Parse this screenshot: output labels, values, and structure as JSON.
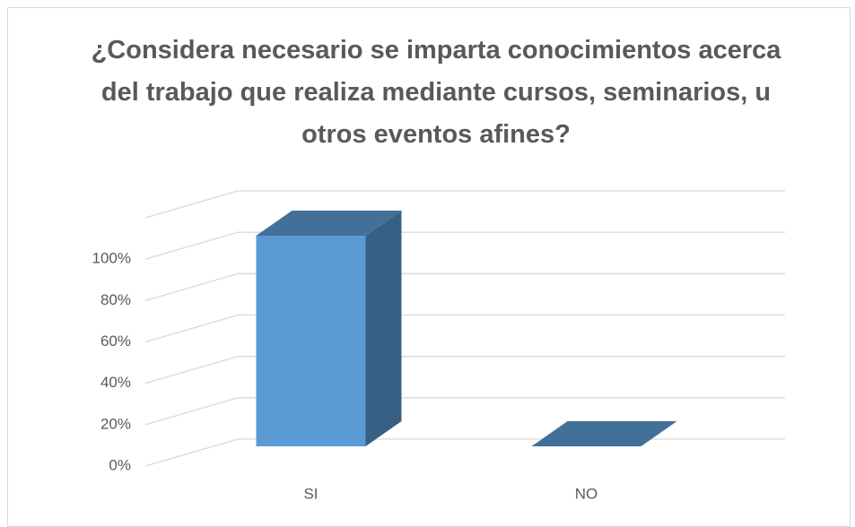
{
  "chart_data": {
    "type": "bar3d",
    "title": "¿Considera necesario se imparta conocimientos acerca del trabajo que realiza mediante cursos, seminarios, u otros eventos afines?",
    "categories": [
      "SI",
      "NO"
    ],
    "values": [
      100,
      0
    ],
    "color": "#5b9bd5",
    "ylim": [
      0,
      120
    ],
    "yticks": [
      {
        "value": 0,
        "label": "0%"
      },
      {
        "value": 20,
        "label": "20%"
      },
      {
        "value": 40,
        "label": "40%"
      },
      {
        "value": 60,
        "label": "60%"
      },
      {
        "value": 80,
        "label": "80%"
      },
      {
        "value": 100,
        "label": "100%"
      }
    ],
    "grid": true
  }
}
